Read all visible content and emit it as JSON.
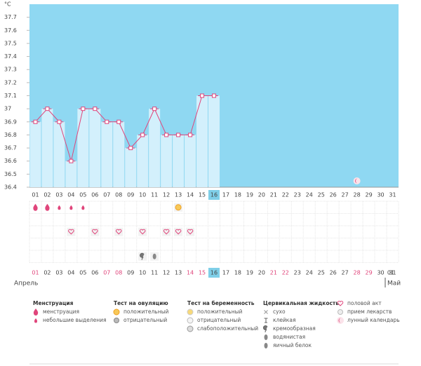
{
  "chart_data": {
    "type": "line",
    "y_unit": "°C",
    "categories": [
      "01",
      "02",
      "03",
      "04",
      "05",
      "06",
      "07",
      "08",
      "09",
      "10",
      "11",
      "12",
      "13",
      "14",
      "15",
      "16",
      "17",
      "18",
      "19",
      "20",
      "21",
      "22",
      "23",
      "24",
      "25",
      "26",
      "27",
      "28",
      "29",
      "30",
      "31"
    ],
    "values": [
      36.9,
      37.0,
      36.9,
      36.6,
      37.0,
      37.0,
      36.9,
      36.9,
      36.7,
      36.8,
      37.0,
      36.8,
      36.8,
      36.8,
      37.1,
      37.1,
      null,
      null,
      null,
      null,
      null,
      null,
      null,
      null,
      null,
      null,
      null,
      null,
      null,
      null,
      null
    ],
    "ylim": [
      36.4,
      37.8
    ],
    "yticks": [
      36.4,
      36.5,
      36.6,
      36.7,
      36.8,
      36.9,
      37,
      37.1,
      37.2,
      37.3,
      37.4,
      37.5,
      37.6,
      37.7
    ],
    "line_color": "#e0457b",
    "bar_color": "#d3f0fc",
    "background_color": "#8fd8f2",
    "today": "16",
    "red_days": [
      "01",
      "07",
      "08",
      "14",
      "15",
      "21",
      "22",
      "28",
      "29"
    ],
    "month": "Апрель",
    "next_month": "Май",
    "next_month_day": "01",
    "tracker": {
      "menstruation": [
        "01",
        "02"
      ],
      "spotting": [
        "03",
        "04",
        "05"
      ],
      "ovulation_positive": [
        "13"
      ],
      "intercourse": [
        "04",
        "06",
        "08",
        "10",
        "12",
        "13",
        "14"
      ],
      "creamy": [
        "10"
      ],
      "watery": [
        "11"
      ],
      "moon": [
        "28"
      ]
    },
    "legend": [
      {
        "title": "Менструация",
        "items": [
          {
            "label": "менструация",
            "icon": "menstruation"
          },
          {
            "label": "небольшие выделения",
            "icon": "spotting"
          }
        ]
      },
      {
        "title": "Тест на овуляцию",
        "items": [
          {
            "label": "положительный",
            "icon": "ovulation_positive"
          },
          {
            "label": "отрицательный",
            "icon": "negative"
          }
        ]
      },
      {
        "title": "Тест на беременность",
        "items": [
          {
            "label": "положительный",
            "icon": "preg_positive"
          },
          {
            "label": "отрицательный",
            "icon": "preg_negative"
          },
          {
            "label": "слабоположительный",
            "icon": "preg_weak"
          }
        ]
      },
      {
        "title": "Цервикальная жидкость",
        "items": [
          {
            "label": "сухо",
            "icon": "dry"
          },
          {
            "label": "клейкая",
            "icon": "sticky"
          },
          {
            "label": "кремообразная",
            "icon": "creamy"
          },
          {
            "label": "водянистая",
            "icon": "watery"
          },
          {
            "label": "яичный белок",
            "icon": "eggwhite"
          }
        ]
      },
      {
        "items": [
          {
            "label": "половой акт",
            "icon": "intercourse"
          },
          {
            "label": "прием лекарств",
            "icon": "pill"
          },
          {
            "label": "лунный календарь",
            "icon": "moon"
          }
        ]
      }
    ]
  }
}
